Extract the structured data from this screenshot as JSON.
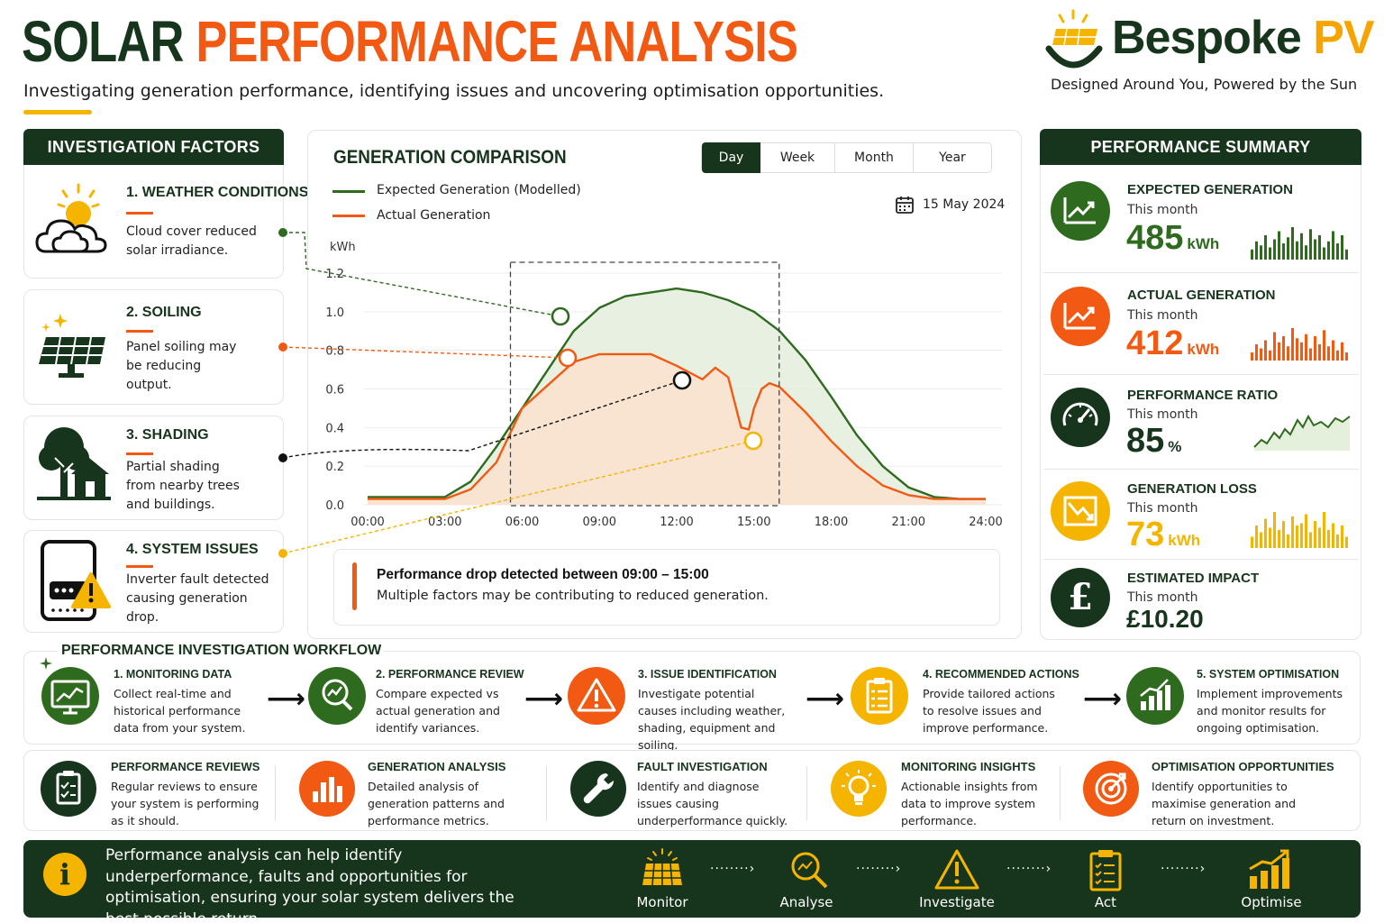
{
  "header": {
    "title_part1": "SOLAR",
    "title_part2": "PERFORMANCE ANALYSIS",
    "subtitle": "Investigating generation performance, identifying issues and uncovering optimisation opportunities.",
    "brand_name": "Bespoke",
    "brand_suffix": "PV",
    "brand_tagline": "Designed Around You, Powered by the Sun"
  },
  "factors": {
    "heading": "INVESTIGATION FACTORS",
    "items": [
      {
        "title": "1. WEATHER CONDITIONS",
        "desc": "Cloud cover reduced solar irradiance.",
        "icon": "cloud-sun-icon"
      },
      {
        "title": "2. SOILING",
        "desc": "Panel soiling may be reducing output.",
        "icon": "solar-panel-icon"
      },
      {
        "title": "3. SHADING",
        "desc": "Partial shading from nearby trees and buildings.",
        "icon": "tree-house-icon"
      },
      {
        "title": "4. SYSTEM ISSUES",
        "desc": "Inverter fault detected causing generation drop.",
        "icon": "inverter-warning-icon"
      }
    ]
  },
  "comparison": {
    "heading": "GENERATION COMPARISON",
    "tabs": [
      "Day",
      "Week",
      "Month",
      "Year"
    ],
    "active_tab": "Day",
    "date": "15 May 2024",
    "alert_title": "Performance drop detected between 09:00 – 15:00",
    "alert_text": "Multiple factors may be contributing to reduced generation."
  },
  "chart_data": {
    "type": "area",
    "ylabel": "kWh",
    "xlabel": "",
    "ylim": [
      0,
      1.2
    ],
    "xlim": [
      0,
      24
    ],
    "x_ticks": [
      "00:00",
      "03:00",
      "06:00",
      "09:00",
      "12:00",
      "15:00",
      "18:00",
      "21:00",
      "24:00"
    ],
    "y_ticks": [
      "0.0",
      "0.2",
      "0.4",
      "0.6",
      "0.8",
      "1.0",
      "1.2"
    ],
    "series": [
      {
        "name": "Expected Generation (Modelled)",
        "color": "#2e6b1e",
        "x": [
          0,
          3,
          4,
          5,
          6,
          7,
          8,
          9,
          10,
          11,
          12,
          13,
          14,
          15,
          16,
          17,
          18,
          19,
          20,
          21,
          22,
          23,
          24
        ],
        "y": [
          0.04,
          0.04,
          0.12,
          0.3,
          0.5,
          0.7,
          0.9,
          1.02,
          1.08,
          1.1,
          1.12,
          1.1,
          1.06,
          1.0,
          0.9,
          0.75,
          0.56,
          0.36,
          0.2,
          0.09,
          0.04,
          0.03,
          0.03
        ]
      },
      {
        "name": "Actual Generation",
        "color": "#f25a14",
        "x": [
          0,
          3,
          4,
          5,
          6,
          7,
          8,
          9,
          10,
          11,
          12,
          13,
          13.5,
          14,
          14.5,
          14.8,
          15,
          15.3,
          15.6,
          16,
          17,
          18,
          19,
          20,
          21,
          22,
          23,
          24
        ],
        "y": [
          0.03,
          0.03,
          0.08,
          0.22,
          0.5,
          0.62,
          0.74,
          0.78,
          0.78,
          0.78,
          0.72,
          0.65,
          0.71,
          0.66,
          0.4,
          0.39,
          0.5,
          0.6,
          0.63,
          0.61,
          0.48,
          0.33,
          0.2,
          0.1,
          0.05,
          0.03,
          0.03,
          0.03
        ]
      }
    ],
    "highlight_range": [
      "06:00",
      "15:00"
    ]
  },
  "summary": {
    "heading": "PERFORMANCE SUMMARY",
    "items": [
      {
        "label": "EXPECTED GENERATION",
        "period": "This month",
        "value": "485",
        "unit": "kWh",
        "color": "#2e6b1e",
        "icon": "trend-chart-icon"
      },
      {
        "label": "ACTUAL GENERATION",
        "period": "This month",
        "value": "412",
        "unit": "kWh",
        "color": "#f25a14",
        "icon": "trend-chart-icon"
      },
      {
        "label": "PERFORMANCE RATIO",
        "period": "This month",
        "value": "85",
        "unit": "%",
        "color": "#17351c",
        "icon": "gauge-icon"
      },
      {
        "label": "GENERATION LOSS",
        "period": "This month",
        "value": "73",
        "unit": "kWh",
        "color": "#f5b400",
        "icon": "loss-chart-icon"
      },
      {
        "label": "ESTIMATED IMPACT",
        "period": "This month",
        "value": "£10.20",
        "unit": "",
        "color": "#17351c",
        "icon": "pound-icon"
      }
    ]
  },
  "workflow": {
    "heading": "PERFORMANCE INVESTIGATION WORKFLOW",
    "steps": [
      {
        "title": "1. MONITORING DATA",
        "desc": "Collect real-time and historical performance data from your system.",
        "icon": "monitor-chart-icon"
      },
      {
        "title": "2. PERFORMANCE REVIEW",
        "desc": "Compare expected vs actual generation and identify variances.",
        "icon": "magnifier-chart-icon"
      },
      {
        "title": "3. ISSUE IDENTIFICATION",
        "desc": "Investigate potential causes including weather, shading, equipment and soiling.",
        "icon": "warning-icon"
      },
      {
        "title": "4. RECOMMENDED ACTIONS",
        "desc": "Provide tailored actions to resolve issues and improve performance.",
        "icon": "clipboard-icon"
      },
      {
        "title": "5. SYSTEM OPTIMISATION",
        "desc": "Implement improvements and monitor results for ongoing optimisation.",
        "icon": "growth-chart-icon"
      }
    ]
  },
  "features": [
    {
      "title": "PERFORMANCE REVIEWS",
      "desc": "Regular reviews to ensure your system is performing as it should.",
      "icon": "checklist-icon"
    },
    {
      "title": "GENERATION ANALYSIS",
      "desc": "Detailed analysis of generation patterns and performance metrics.",
      "icon": "bar-chart-icon"
    },
    {
      "title": "FAULT INVESTIGATION",
      "desc": "Identify and diagnose issues causing underperformance quickly.",
      "icon": "wrench-icon"
    },
    {
      "title": "MONITORING INSIGHTS",
      "desc": "Actionable insights from data to improve system performance.",
      "icon": "lightbulb-icon"
    },
    {
      "title": "OPTIMISATION OPPORTUNITIES",
      "desc": "Identify opportunities to maximise generation and return on investment.",
      "icon": "target-icon"
    }
  ],
  "footer": {
    "text": "Performance analysis can help identify underperformance, faults and opportunities for optimisation, ensuring your solar system delivers the best possible return.",
    "steps": [
      "Monitor",
      "Analyse",
      "Investigate",
      "Act",
      "Optimise"
    ]
  }
}
